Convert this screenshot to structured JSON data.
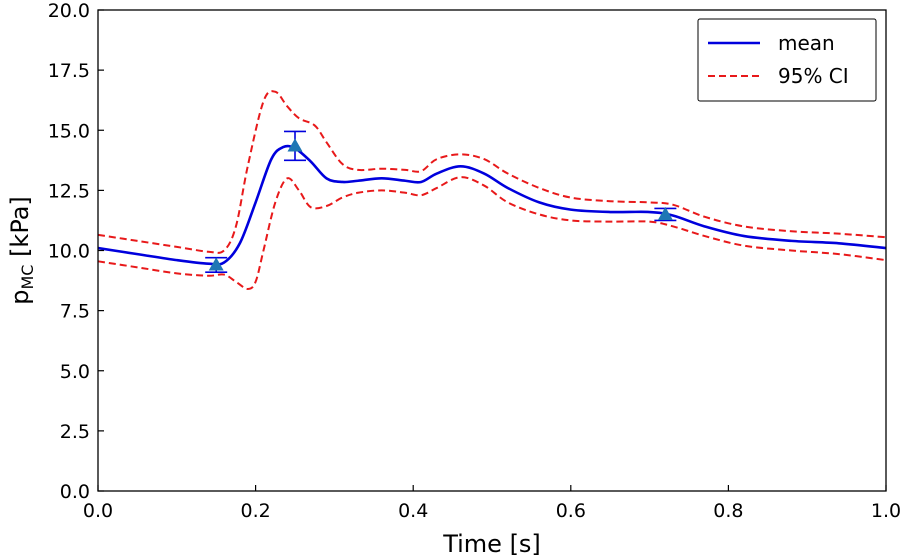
{
  "chart_data": {
    "type": "line",
    "xlabel": "Time [s]",
    "ylabel_main": "p",
    "ylabel_sub": "MC",
    "ylabel_unit": " [kPa]",
    "xlim": [
      0.0,
      1.0
    ],
    "ylim": [
      0.0,
      20.0
    ],
    "xticks": [
      "0.0",
      "0.2",
      "0.4",
      "0.6",
      "0.8",
      "1.0"
    ],
    "yticks": [
      "0.0",
      "2.5",
      "5.0",
      "7.5",
      "10.0",
      "12.5",
      "15.0",
      "17.5",
      "20.0"
    ],
    "grid": false,
    "legend_position": "top-right",
    "series": [
      {
        "name": "mean",
        "style": "solid",
        "color": "#0000dd",
        "x": [
          0.0,
          0.05,
          0.1,
          0.14,
          0.16,
          0.18,
          0.2,
          0.22,
          0.235,
          0.25,
          0.27,
          0.29,
          0.31,
          0.33,
          0.36,
          0.39,
          0.41,
          0.43,
          0.46,
          0.49,
          0.52,
          0.56,
          0.6,
          0.65,
          0.7,
          0.73,
          0.77,
          0.82,
          0.88,
          0.94,
          1.0
        ],
        "y": [
          10.1,
          9.85,
          9.6,
          9.45,
          9.5,
          10.3,
          12.0,
          13.8,
          14.3,
          14.25,
          13.7,
          13.0,
          12.85,
          12.9,
          13.0,
          12.9,
          12.85,
          13.2,
          13.5,
          13.2,
          12.6,
          12.0,
          11.7,
          11.6,
          11.6,
          11.45,
          11.0,
          10.6,
          10.4,
          10.3,
          10.1
        ]
      },
      {
        "name": "95% CI",
        "style": "dashed",
        "color": "#e8191a",
        "x": [
          0.0,
          0.05,
          0.1,
          0.14,
          0.16,
          0.175,
          0.19,
          0.21,
          0.225,
          0.24,
          0.255,
          0.275,
          0.29,
          0.31,
          0.33,
          0.36,
          0.39,
          0.41,
          0.43,
          0.46,
          0.49,
          0.52,
          0.56,
          0.6,
          0.65,
          0.7,
          0.73,
          0.77,
          0.82,
          0.88,
          0.94,
          1.0
        ],
        "y": [
          10.65,
          10.4,
          10.15,
          9.95,
          10.0,
          11.0,
          13.5,
          16.2,
          16.6,
          16.0,
          15.5,
          15.2,
          14.5,
          13.6,
          13.35,
          13.4,
          13.35,
          13.3,
          13.8,
          14.0,
          13.8,
          13.2,
          12.6,
          12.2,
          12.05,
          12.0,
          11.9,
          11.4,
          11.0,
          10.8,
          10.7,
          10.55
        ]
      },
      {
        "name": "",
        "style": "dashed",
        "color": "#e8191a",
        "x": [
          0.0,
          0.05,
          0.1,
          0.14,
          0.16,
          0.175,
          0.19,
          0.2,
          0.21,
          0.225,
          0.24,
          0.255,
          0.27,
          0.29,
          0.31,
          0.33,
          0.36,
          0.39,
          0.41,
          0.43,
          0.46,
          0.49,
          0.52,
          0.56,
          0.6,
          0.65,
          0.7,
          0.73,
          0.77,
          0.82,
          0.88,
          0.94,
          1.0
        ],
        "y": [
          9.55,
          9.3,
          9.05,
          8.95,
          9.0,
          8.7,
          8.4,
          8.7,
          10.0,
          12.0,
          13.0,
          12.5,
          11.8,
          11.85,
          12.2,
          12.4,
          12.5,
          12.4,
          12.3,
          12.6,
          13.05,
          12.7,
          12.0,
          11.5,
          11.25,
          11.2,
          11.2,
          11.0,
          10.6,
          10.2,
          10.0,
          9.85,
          9.6
        ]
      }
    ],
    "observations": {
      "marker": "triangle",
      "color": "#1f77b4",
      "errorbar_color": "#0000dd",
      "points": [
        {
          "x": 0.15,
          "y": 9.4,
          "err": 0.3
        },
        {
          "x": 0.25,
          "y": 14.35,
          "err": 0.6
        },
        {
          "x": 0.72,
          "y": 11.5,
          "err": 0.25
        }
      ]
    },
    "legend": [
      {
        "label": "mean",
        "style": "solid",
        "color": "#0000dd"
      },
      {
        "label": "95% CI",
        "style": "dashed",
        "color": "#e8191a"
      }
    ]
  }
}
